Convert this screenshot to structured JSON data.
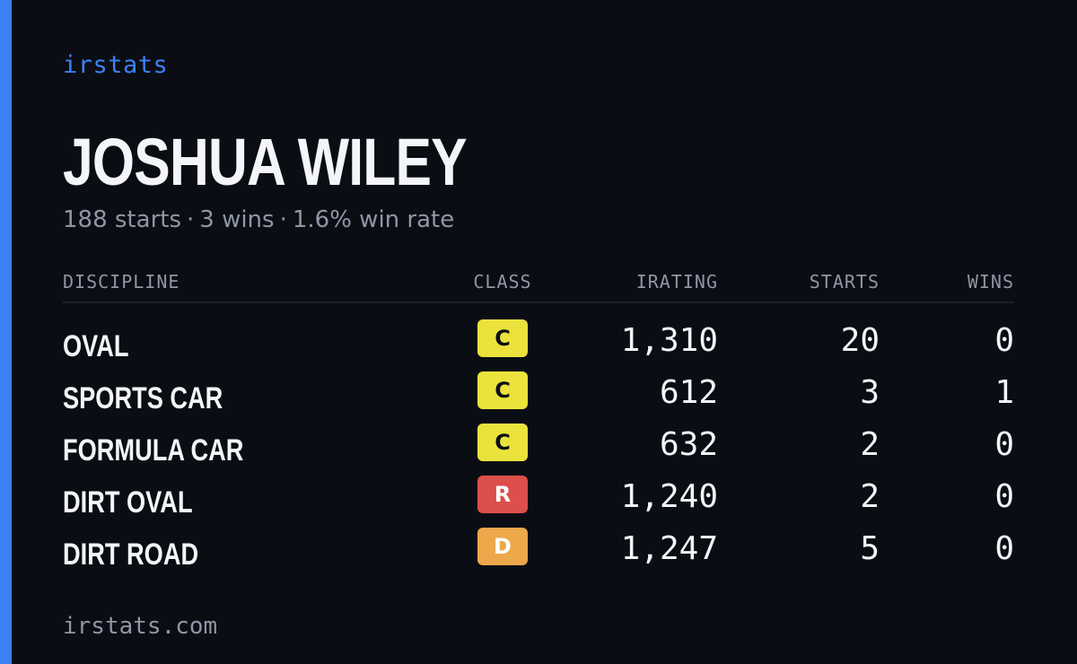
{
  "colors": {
    "background": "#0b0d14",
    "accent": "#3b82f6",
    "text_primary": "#f4f5f8",
    "text_muted": "#8f96a6",
    "class_c": "#ebe23c",
    "class_r": "#dc4f4a",
    "class_d": "#eca84a",
    "badge_text_dark": "#0b0d14",
    "badge_text_light": "#ffffff"
  },
  "brand": "irstats",
  "driver": {
    "name": "JOSHUA WILEY"
  },
  "summary": {
    "starts": "188 starts",
    "wins": "3 wins",
    "win_rate": "1.6% win rate",
    "separator": "·"
  },
  "table": {
    "headers": {
      "discipline": "DISCIPLINE",
      "class": "CLASS",
      "irating": "IRATING",
      "starts": "STARTS",
      "wins": "WINS"
    },
    "rows": [
      {
        "discipline": "OVAL",
        "class": "C",
        "irating": "1,310",
        "starts": "20",
        "wins": "0"
      },
      {
        "discipline": "SPORTS CAR",
        "class": "C",
        "irating": "612",
        "starts": "3",
        "wins": "1"
      },
      {
        "discipline": "FORMULA CAR",
        "class": "C",
        "irating": "632",
        "starts": "2",
        "wins": "0"
      },
      {
        "discipline": "DIRT OVAL",
        "class": "R",
        "irating": "1,240",
        "starts": "2",
        "wins": "0"
      },
      {
        "discipline": "DIRT ROAD",
        "class": "D",
        "irating": "1,247",
        "starts": "5",
        "wins": "0"
      }
    ]
  },
  "footer": "irstats.com"
}
